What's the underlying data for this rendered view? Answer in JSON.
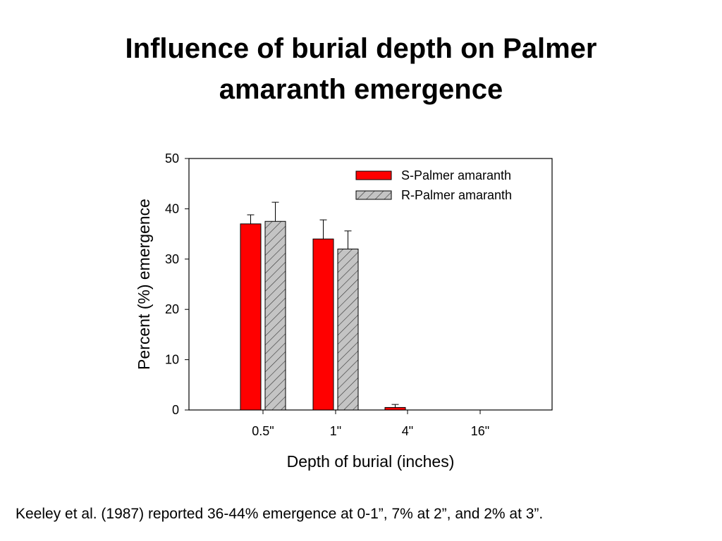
{
  "slide": {
    "title_line1": "Influence of burial depth on Palmer",
    "title_line2": "amaranth emergence",
    "caption": "Keeley et al. (1987) reported 36-44% emergence at 0-1”, 7% at 2”, and 2% at 3”."
  },
  "chart_data": {
    "type": "bar",
    "xlabel": "Depth of burial (inches)",
    "ylabel": "Percent (%) emergence",
    "categories": [
      "0.5\"",
      "1\"",
      "4\"",
      "16\""
    ],
    "ylim": [
      0,
      50
    ],
    "yticks": [
      0,
      10,
      20,
      30,
      40,
      50
    ],
    "grid": false,
    "legend_position": "top-right",
    "series": [
      {
        "name": "S-Palmer amaranth",
        "values": [
          37,
          34,
          0.5,
          0
        ],
        "errors": [
          1.8,
          3.8,
          0.6,
          0
        ],
        "color": "#ff0000",
        "pattern": "solid"
      },
      {
        "name": "R-Palmer amaranth",
        "values": [
          37.5,
          32,
          0,
          0
        ],
        "errors": [
          3.8,
          3.6,
          0,
          0
        ],
        "color": "#c0c0c0",
        "pattern": "diagonal-hatch"
      }
    ]
  }
}
